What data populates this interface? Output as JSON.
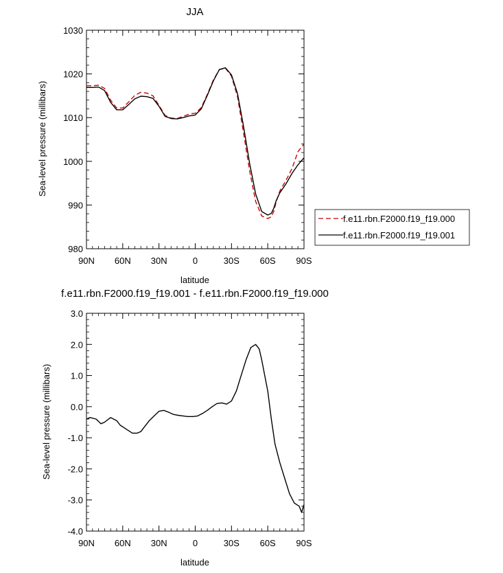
{
  "chart_data": [
    {
      "type": "line",
      "title": "JJA",
      "xlabel": "latitude",
      "ylabel": "Sea-level pressure (millibars)",
      "xlim": [
        90,
        -90
      ],
      "ylim": [
        980,
        1030
      ],
      "xticks": [
        "90N",
        "60N",
        "30N",
        "0",
        "30S",
        "60S",
        "90S"
      ],
      "yticks": [
        "980",
        "990",
        "1000",
        "1010",
        "1020",
        "1030"
      ],
      "legend_position": "right",
      "series": [
        {
          "name": "f.e11.rbn.F2000.f19_f19.000",
          "color": "#cc0000",
          "dash": "dashed",
          "x": [
            90,
            85,
            80,
            75,
            70,
            65,
            60,
            55,
            50,
            45,
            40,
            35,
            30,
            25,
            20,
            15,
            10,
            5,
            0,
            -5,
            -10,
            -15,
            -20,
            -25,
            -30,
            -35,
            -40,
            -45,
            -50,
            -55,
            -60,
            -63,
            -65,
            -67,
            -70,
            -75,
            -80,
            -85,
            -90
          ],
          "values": [
            1017.3,
            1017.3,
            1017.4,
            1016.7,
            1014.0,
            1012.2,
            1012.2,
            1013.6,
            1015.1,
            1015.8,
            1015.6,
            1015.0,
            1012.8,
            1010.5,
            1009.9,
            1009.8,
            1010.3,
            1010.8,
            1011.0,
            1012.3,
            1015.3,
            1018.6,
            1021.0,
            1021.3,
            1019.5,
            1014.8,
            1006.5,
            997.8,
            990.8,
            987.5,
            986.9,
            987.3,
            988.6,
            990.7,
            993.2,
            995.6,
            998.3,
            1002.2,
            1004.0
          ]
        },
        {
          "name": "f.e11.rbn.F2000.f19_f19.001",
          "color": "#000000",
          "dash": "solid",
          "x": [
            90,
            85,
            80,
            75,
            70,
            65,
            60,
            55,
            50,
            45,
            40,
            35,
            30,
            25,
            20,
            15,
            10,
            5,
            0,
            -5,
            -10,
            -15,
            -20,
            -25,
            -30,
            -35,
            -40,
            -45,
            -50,
            -55,
            -60,
            -63,
            -65,
            -67,
            -70,
            -75,
            -80,
            -85,
            -90
          ],
          "values": [
            1016.9,
            1016.9,
            1017.0,
            1016.2,
            1013.5,
            1011.8,
            1011.8,
            1013.0,
            1014.3,
            1014.9,
            1014.8,
            1014.4,
            1012.6,
            1010.3,
            1009.8,
            1009.7,
            1010.0,
            1010.4,
            1010.6,
            1012.0,
            1015.1,
            1018.4,
            1021.0,
            1021.4,
            1019.8,
            1015.5,
            1008.0,
            999.5,
            992.5,
            988.5,
            987.7,
            988.1,
            989.3,
            991.0,
            992.8,
            994.8,
            997.2,
            999.2,
            1000.8
          ]
        }
      ]
    },
    {
      "type": "line",
      "title": "f.e11.rbn.F2000.f19_f19.001 - f.e11.rbn.F2000.f19_f19.000",
      "xlabel": "latitude",
      "ylabel": "Sea-level pressure (millibars)",
      "xlim": [
        90,
        -90
      ],
      "ylim": [
        -4.0,
        3.0
      ],
      "xticks": [
        "90N",
        "60N",
        "30N",
        "0",
        "30S",
        "60S",
        "90S"
      ],
      "yticks": [
        "-4.0",
        "-3.0",
        "-2.0",
        "-1.0",
        "0.0",
        "1.0",
        "2.0",
        "3.0"
      ],
      "series": [
        {
          "color": "#000000",
          "dash": "solid",
          "x": [
            90,
            87,
            82,
            78,
            75,
            70,
            65,
            62,
            58,
            52,
            48,
            45,
            42,
            38,
            34,
            30,
            26,
            22,
            18,
            14,
            10,
            6,
            2,
            -2,
            -6,
            -10,
            -14,
            -18,
            -22,
            -26,
            -30,
            -34,
            -38,
            -42,
            -46,
            -50,
            -53,
            -55,
            -57,
            -60,
            -63,
            -66,
            -70,
            -74,
            -78,
            -82,
            -86,
            -88,
            -90
          ],
          "values": [
            -0.4,
            -0.35,
            -0.4,
            -0.55,
            -0.5,
            -0.35,
            -0.45,
            -0.6,
            -0.7,
            -0.85,
            -0.85,
            -0.8,
            -0.65,
            -0.45,
            -0.3,
            -0.15,
            -0.12,
            -0.18,
            -0.25,
            -0.28,
            -0.3,
            -0.32,
            -0.32,
            -0.3,
            -0.22,
            -0.12,
            0.0,
            0.1,
            0.12,
            0.08,
            0.18,
            0.5,
            1.0,
            1.5,
            1.9,
            2.0,
            1.85,
            1.5,
            1.1,
            0.5,
            -0.4,
            -1.2,
            -1.8,
            -2.3,
            -2.8,
            -3.1,
            -3.2,
            -3.4,
            -3.15
          ]
        }
      ]
    }
  ]
}
